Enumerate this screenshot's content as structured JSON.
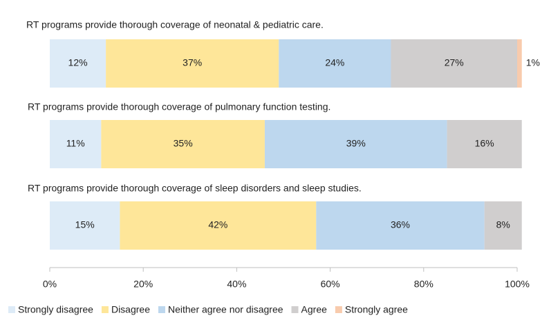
{
  "chart_data": {
    "type": "stacked-bar-horizontal",
    "categories": [
      "RT programs provide thorough coverage of neonatal & pediatric care.",
      "RT programs provide thorough coverage of pulmonary function testing.",
      "RT programs provide thorough coverage of sleep disorders and sleep studies."
    ],
    "series": [
      {
        "name": "Strongly disagree",
        "color": "#ddebf7",
        "values": [
          12,
          11,
          15
        ],
        "value_labels": [
          "12%",
          "11%",
          "15%"
        ]
      },
      {
        "name": "Disagree",
        "color": "#fee699",
        "values": [
          37,
          35,
          42
        ],
        "value_labels": [
          "37%",
          "35%",
          "42%"
        ]
      },
      {
        "name": "Neither agree nor disagree",
        "color": "#bdd7ee",
        "values": [
          24,
          39,
          36
        ],
        "value_labels": [
          "24%",
          "39%",
          "36%"
        ]
      },
      {
        "name": "Agree",
        "color": "#d0cece",
        "values": [
          27,
          16,
          8
        ],
        "value_labels": [
          "27%",
          "16%",
          "8%"
        ]
      },
      {
        "name": "Strongly agree",
        "color": "#f8cbad",
        "values": [
          1,
          null,
          null
        ],
        "value_labels": [
          "1%",
          null,
          null
        ]
      }
    ],
    "xlim": [
      0,
      100
    ],
    "xticks": [
      {
        "value": 0,
        "label": "0%"
      },
      {
        "value": 20,
        "label": "20%"
      },
      {
        "value": 40,
        "label": "40%"
      },
      {
        "value": 60,
        "label": "60%"
      },
      {
        "value": 80,
        "label": "80%"
      },
      {
        "value": 100,
        "label": "100%"
      }
    ],
    "legend": "bottom"
  }
}
